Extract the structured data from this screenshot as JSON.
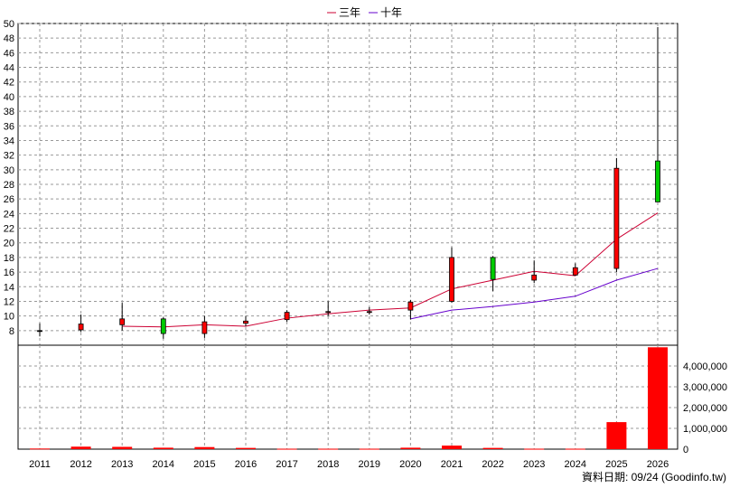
{
  "legend": [
    {
      "label": "三年",
      "color": "#cc0033"
    },
    {
      "label": "十年",
      "color": "#6600cc"
    }
  ],
  "footer": "資料日期: 09/24  (Goodinfo.tw)",
  "chart_data": [
    {
      "type": "candlestick",
      "categories": [
        "2011",
        "2012",
        "2013",
        "2014",
        "2015",
        "2016",
        "2017",
        "2018",
        "2019",
        "2020",
        "2021",
        "2022",
        "2023",
        "2024",
        "2025",
        "2026"
      ],
      "ylim": [
        6,
        50
      ],
      "yticks": [
        8,
        10,
        12,
        14,
        16,
        18,
        20,
        22,
        24,
        26,
        28,
        30,
        32,
        34,
        36,
        38,
        40,
        42,
        44,
        46,
        48,
        50
      ],
      "grid": true,
      "colors": {
        "up": "#ff0000",
        "down": "#00cc00",
        "neutral": "#000000"
      },
      "ohlc": [
        {
          "x": "2011",
          "open": 8.0,
          "high": 9.0,
          "low": 7.2,
          "close": 8.0
        },
        {
          "x": "2012",
          "open": 8.1,
          "high": 10.2,
          "low": 7.8,
          "close": 8.9
        },
        {
          "x": "2013",
          "open": 8.8,
          "high": 11.8,
          "low": 8.0,
          "close": 9.6
        },
        {
          "x": "2014",
          "open": 9.6,
          "high": 9.8,
          "low": 6.9,
          "close": 7.6
        },
        {
          "x": "2015",
          "open": 7.6,
          "high": 10.0,
          "low": 7.0,
          "close": 9.2
        },
        {
          "x": "2016",
          "open": 9.0,
          "high": 10.0,
          "low": 8.6,
          "close": 9.3
        },
        {
          "x": "2017",
          "open": 9.5,
          "high": 10.8,
          "low": 9.2,
          "close": 10.5
        },
        {
          "x": "2018",
          "open": 10.5,
          "high": 12.0,
          "low": 10.0,
          "close": 10.6
        },
        {
          "x": "2019",
          "open": 10.5,
          "high": 11.2,
          "low": 10.2,
          "close": 10.6
        },
        {
          "x": "2020",
          "open": 10.8,
          "high": 12.2,
          "low": 9.5,
          "close": 11.9
        },
        {
          "x": "2021",
          "open": 12.0,
          "high": 19.4,
          "low": 11.8,
          "close": 18.0
        },
        {
          "x": "2022",
          "open": 18.0,
          "high": 18.2,
          "low": 13.4,
          "close": 15.0
        },
        {
          "x": "2023",
          "open": 14.9,
          "high": 17.6,
          "low": 14.5,
          "close": 15.6
        },
        {
          "x": "2024",
          "open": 15.6,
          "high": 17.2,
          "low": 15.5,
          "close": 16.6
        },
        {
          "x": "2025",
          "open": 16.5,
          "high": 31.6,
          "low": 16.0,
          "close": 30.2
        },
        {
          "x": "2026",
          "open": 31.2,
          "high": 49.5,
          "low": 25.6,
          "close": 25.6
        }
      ],
      "series": [
        {
          "name": "三年",
          "type": "line",
          "color": "#cc0033",
          "x": [
            "2013",
            "2014",
            "2015",
            "2016",
            "2017",
            "2018",
            "2019",
            "2020",
            "2021",
            "2022",
            "2023",
            "2024",
            "2025",
            "2026"
          ],
          "values": [
            8.6,
            8.5,
            8.8,
            8.6,
            9.7,
            10.3,
            10.8,
            11.1,
            13.7,
            14.9,
            16.1,
            15.5,
            20.5,
            24.1
          ]
        },
        {
          "name": "十年",
          "type": "line",
          "color": "#6600cc",
          "x": [
            "2020",
            "2021",
            "2022",
            "2023",
            "2024",
            "2025",
            "2026"
          ],
          "values": [
            9.6,
            10.8,
            11.3,
            11.9,
            12.7,
            14.9,
            16.5
          ]
        }
      ]
    },
    {
      "type": "bar",
      "categories": [
        "2011",
        "2012",
        "2013",
        "2014",
        "2015",
        "2016",
        "2017",
        "2018",
        "2019",
        "2020",
        "2021",
        "2022",
        "2023",
        "2024",
        "2025",
        "2026"
      ],
      "values": [
        30000,
        120000,
        110000,
        70000,
        100000,
        60000,
        20000,
        20000,
        20000,
        70000,
        170000,
        60000,
        20000,
        20000,
        1300000,
        4900000
      ],
      "ylim": [
        0,
        5000000
      ],
      "yticks": [
        0,
        1000000,
        2000000,
        3000000,
        4000000
      ],
      "ytick_labels": [
        "0",
        "1,000,000",
        "2,000,000",
        "3,000,000",
        "4,000,000"
      ],
      "color": "#ff0000",
      "grid": true
    }
  ]
}
